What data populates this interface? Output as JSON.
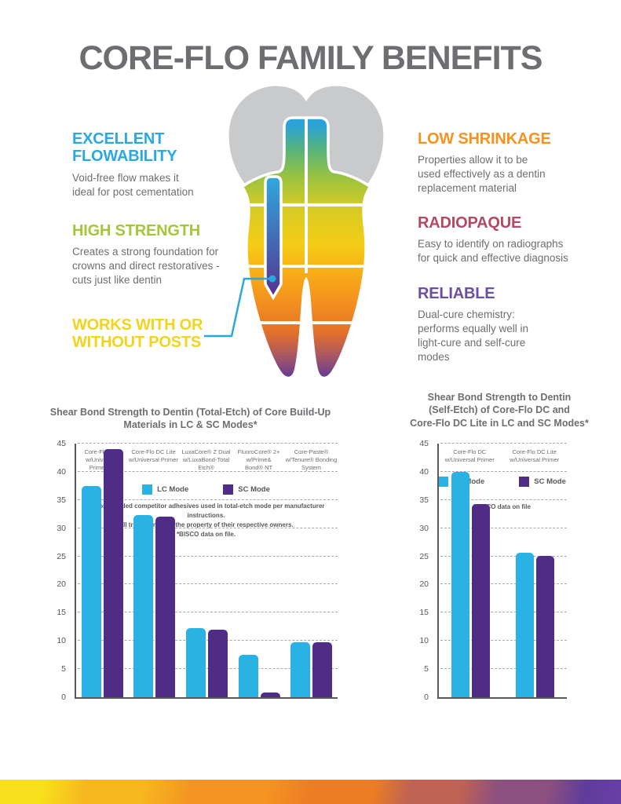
{
  "page": {
    "title": "CORE-FLO FAMILY BENEFITS"
  },
  "benefits": {
    "left": [
      {
        "heading": "EXCELLENT\nFLOWABILITY",
        "color": "#2BA8DF",
        "body": "Void-free flow makes it\nideal for post cementation"
      },
      {
        "heading": "HIGH STRENGTH",
        "color": "#A5C63B",
        "body": "Creates a strong foundation for\ncrowns and direct restoratives -\ncuts just like dentin"
      },
      {
        "heading": "WORKS WITH OR\nWITHOUT POSTS",
        "color": "#F2D41D",
        "body": ""
      }
    ],
    "right": [
      {
        "heading": "LOW SHRINKAGE",
        "color": "#F6921E",
        "body": "Properties allow it to be\nused effectively as a dentin\nreplacement material"
      },
      {
        "heading": "RADIOPAQUE",
        "color": "#B34A65",
        "body": "Easy to identify on radiographs\nfor quick and effective diagnosis"
      },
      {
        "heading": "RELIABLE",
        "color": "#6B4FA1",
        "body": "Dual-cure chemistry:\nperforms equally well in\nlight-cure and self-cure\nmodes"
      }
    ]
  },
  "chart_data": [
    {
      "type": "bar",
      "title": "Shear Bond Strength to Dentin (Total-Etch) of Core Build-Up\nMaterials in LC & SC Modes*",
      "categories": [
        "Core-Flo DC w/Universal Primer™",
        "Core-Flo DC Lite w/Universal Primer",
        "LuxaCore® Z Dual w/LuxaBond-Total Etch®",
        "FluoroCore® 2+ w/Prime&Bond® NT",
        "Core-Paste® w/Tenure® Bonding System"
      ],
      "category_lines": [
        [
          "Core-Flo DC",
          "w/Universal Primer™"
        ],
        [
          "Core-Flo DC Lite",
          "w/Universal Primer"
        ],
        [
          "LuxaCore® Z Dual",
          "w/LuxaBond-Total",
          "Etch®"
        ],
        [
          "FluoroCore® 2+",
          "w/Prime&",
          "Bond® NT"
        ],
        [
          "Core-Paste®",
          "w/Tenure® Bonding",
          "System"
        ]
      ],
      "series": [
        {
          "name": "LC Mode",
          "color": "#29B2E3",
          "values": [
            37.5,
            32.3,
            12.3,
            7.5,
            9.7
          ]
        },
        {
          "name": "SC Mode",
          "color": "#4F2D87",
          "values": [
            44,
            32,
            12,
            0.9,
            9.8
          ]
        }
      ],
      "ylim": [
        0,
        45
      ],
      "ytick_step": 5,
      "grid": "dashed",
      "legend_position": "bottom",
      "footnote": [
        "Recommended competitor adhesives used in total-etch mode per manufacturer instructions.",
        "All trademarks are the property of their respective owners.",
        "*BISCO data on file."
      ]
    },
    {
      "type": "bar",
      "title": "Shear Bond Strength to Dentin\n(Self-Etch) of Core-Flo DC and\nCore-Flo DC Lite in LC and SC Modes*",
      "categories": [
        "Core-Flo DC w/Universal Primer",
        "Core-Flo DC Lite w/Universal Primer"
      ],
      "category_lines": [
        [
          "Core-Flo DC",
          "w/Universal Primer"
        ],
        [
          "Core-Flo DC Lite",
          "w/Universal Primer"
        ]
      ],
      "series": [
        {
          "name": "LC Mode",
          "color": "#29B2E3",
          "values": [
            40,
            25.6
          ]
        },
        {
          "name": "SC Mode",
          "color": "#4F2D87",
          "values": [
            34.3,
            25.1
          ]
        }
      ],
      "ylim": [
        0,
        45
      ],
      "ytick_step": 5,
      "grid": "dashed",
      "legend_position": "bottom",
      "footnote": [
        "*BISCO data on file"
      ]
    }
  ],
  "colors": {
    "title_gray": "#6D6E71",
    "axis_gray": "#58595B",
    "lc_mode": "#29B2E3",
    "sc_mode": "#4F2D87",
    "callout": "#29A8DF",
    "crown_gray": "#C9CACC"
  }
}
